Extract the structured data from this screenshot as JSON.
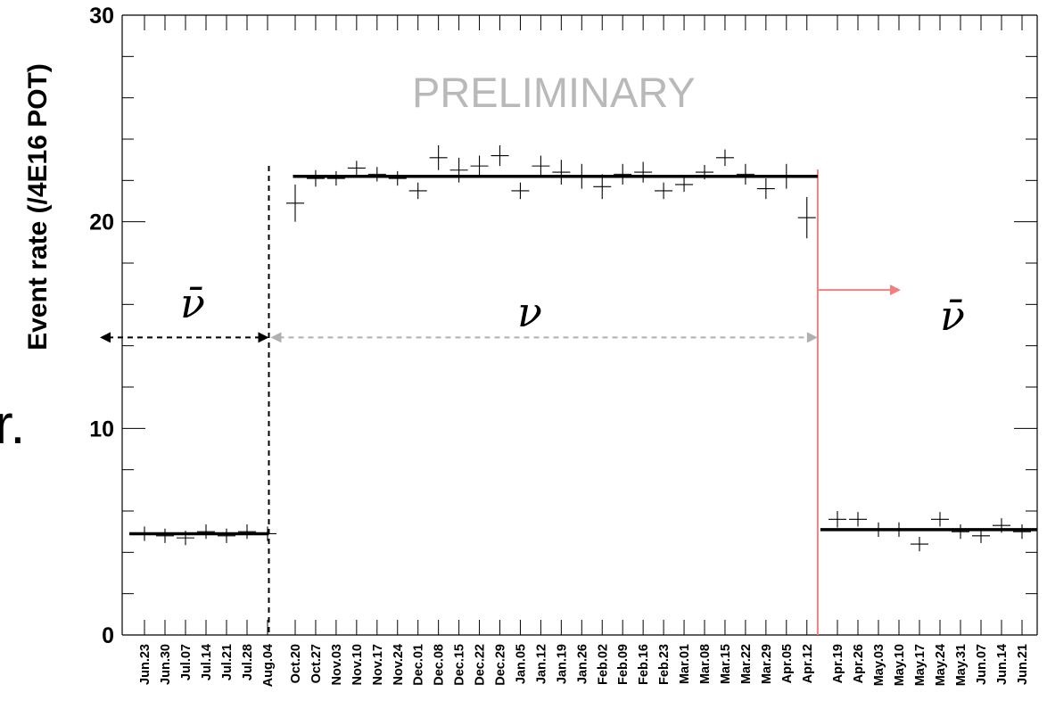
{
  "chart_data": {
    "type": "scatter",
    "ylabel": "Event rate (/4E16 POT)",
    "ylim": [
      0,
      30
    ],
    "yticks": [
      0,
      10,
      20,
      30
    ],
    "annotation": "PRELIMINARY",
    "left_fragment": "r.",
    "categories": [
      "Jun.23",
      "Jun.30",
      "Jul.07",
      "Jul.14",
      "Jul.21",
      "Jul.28",
      "Aug.04",
      "Oct.20",
      "Oct.27",
      "Nov.03",
      "Nov.10",
      "Nov.17",
      "Nov.24",
      "Dec.01",
      "Dec.08",
      "Dec.15",
      "Dec.22",
      "Dec.29",
      "Jan.05",
      "Jan.12",
      "Jan.19",
      "Jan.26",
      "Feb.02",
      "Feb.09",
      "Feb.16",
      "Feb.23",
      "Mar.01",
      "Mar.08",
      "Mar.15",
      "Mar.22",
      "Mar.29",
      "Apr.05",
      "Apr.12",
      "Apr.19",
      "Apr.26",
      "May.03",
      "May.10",
      "May.17",
      "May.24",
      "May.31",
      "Jun.07",
      "Jun.14",
      "Jun.21"
    ],
    "points": [
      {
        "y": 4.9,
        "err": 0.1
      },
      {
        "y": 4.8,
        "err": 0.1
      },
      {
        "y": 4.7,
        "err": 0.1
      },
      {
        "y": 5.0,
        "err": 0.1
      },
      {
        "y": 4.8,
        "err": 0.1
      },
      {
        "y": 5.0,
        "err": 0.1
      },
      {
        "y": 4.9,
        "err": 0.1
      },
      {
        "y": 20.9,
        "err": 0.9
      },
      {
        "y": 22.1,
        "err": 0.4
      },
      {
        "y": 22.1,
        "err": 0.3
      },
      {
        "y": 22.6,
        "err": 0.3
      },
      {
        "y": 22.3,
        "err": 0.3
      },
      {
        "y": 22.1,
        "err": 0.3
      },
      {
        "y": 21.5,
        "err": 0.4
      },
      {
        "y": 23.1,
        "err": 0.6
      },
      {
        "y": 22.5,
        "err": 0.6
      },
      {
        "y": 22.7,
        "err": 0.5
      },
      {
        "y": 23.2,
        "err": 0.5
      },
      {
        "y": 21.5,
        "err": 0.4
      },
      {
        "y": 22.7,
        "err": 0.5
      },
      {
        "y": 22.4,
        "err": 0.6
      },
      {
        "y": 22.2,
        "err": 0.6
      },
      {
        "y": 21.7,
        "err": 0.6
      },
      {
        "y": 22.3,
        "err": 0.5
      },
      {
        "y": 22.4,
        "err": 0.5
      },
      {
        "y": 21.5,
        "err": 0.4
      },
      {
        "y": 21.8,
        "err": 0.3
      },
      {
        "y": 22.4,
        "err": 0.3
      },
      {
        "y": 23.1,
        "err": 0.4
      },
      {
        "y": 22.3,
        "err": 0.5
      },
      {
        "y": 21.6,
        "err": 0.5
      },
      {
        "y": 22.2,
        "err": 0.6
      },
      {
        "y": 20.2,
        "err": 1.0
      },
      {
        "y": 5.6,
        "err": 0.4
      },
      {
        "y": 5.6,
        "err": 0.3
      },
      {
        "y": 5.1,
        "err": 0.2
      },
      {
        "y": 5.1,
        "err": 0.2
      },
      {
        "y": 4.4,
        "err": 0.2
      },
      {
        "y": 5.6,
        "err": 0.2
      },
      {
        "y": 5.0,
        "err": 0.1
      },
      {
        "y": 4.8,
        "err": 0.1
      },
      {
        "y": 5.3,
        "err": 0.1
      },
      {
        "y": 5.0,
        "err": 0.1
      }
    ],
    "fits": [
      {
        "from": 0,
        "to": 6,
        "y": 4.9
      },
      {
        "from": 7,
        "to": 32,
        "y": 22.2
      },
      {
        "from": 33,
        "to": 42,
        "y": 5.1
      }
    ],
    "periods": [
      {
        "label": "ν̄",
        "from": 0,
        "to": 6,
        "color": "#000000"
      },
      {
        "label": "ν",
        "from": 7,
        "to": 32,
        "color": "#b0b0b0"
      },
      {
        "label": "ν̄",
        "from": 33,
        "to": 42,
        "color": "#f08080"
      }
    ],
    "grid": false
  }
}
